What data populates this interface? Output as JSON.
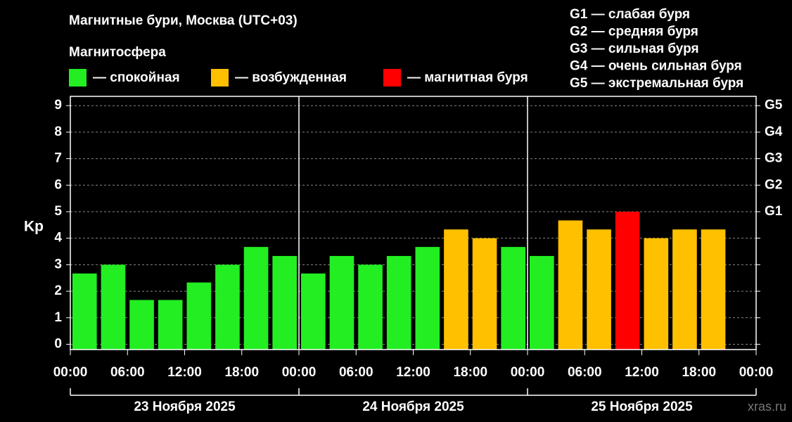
{
  "chart_data": {
    "type": "bar",
    "title": "Магнитные бури, Москва (UTC+03)",
    "legend_title": "Магнитосфера",
    "legend": [
      {
        "name": "— спокойная",
        "color": "#22ee22"
      },
      {
        "name": "— возбужденная",
        "color": "#ffc000"
      },
      {
        "name": "— магнитная буря",
        "color": "#ff0000"
      }
    ],
    "storm_levels": [
      "G1 — слабая буря",
      "G2 — средняя буря",
      "G3 — сильная буря",
      "G4 — очень сильная буря",
      "G5 — экстремальная буря"
    ],
    "ylabel": "Kp",
    "x": [
      0,
      3,
      6,
      9,
      12,
      15,
      18,
      21,
      24,
      27,
      30,
      33,
      36,
      39,
      42,
      45,
      48,
      51,
      54,
      57,
      60,
      63,
      66
    ],
    "values": [
      2.67,
      3,
      1.67,
      1.67,
      2.33,
      3,
      3.67,
      3.33,
      2.67,
      3.33,
      3,
      3.33,
      3.67,
      4.33,
      4,
      3.67,
      3.33,
      4.67,
      4.33,
      5,
      4,
      4.33,
      4.33
    ],
    "colors": [
      "#22ee22",
      "#22ee22",
      "#22ee22",
      "#22ee22",
      "#22ee22",
      "#22ee22",
      "#22ee22",
      "#22ee22",
      "#22ee22",
      "#22ee22",
      "#22ee22",
      "#22ee22",
      "#22ee22",
      "#ffc000",
      "#ffc000",
      "#22ee22",
      "#22ee22",
      "#ffc000",
      "#ffc000",
      "#ff0000",
      "#ffc000",
      "#ffc000",
      "#ffc000"
    ],
    "xlim": [
      0,
      72
    ],
    "xticks": [
      {
        "value": 0,
        "label": "00:00"
      },
      {
        "value": 6,
        "label": "06:00"
      },
      {
        "value": 12,
        "label": "12:00"
      },
      {
        "value": 18,
        "label": "18:00"
      },
      {
        "value": 24,
        "label": "00:00"
      },
      {
        "value": 30,
        "label": "06:00"
      },
      {
        "value": 36,
        "label": "12:00"
      },
      {
        "value": 42,
        "label": "18:00"
      },
      {
        "value": 48,
        "label": "00:00"
      },
      {
        "value": 54,
        "label": "06:00"
      },
      {
        "value": 60,
        "label": "12:00"
      },
      {
        "value": 66,
        "label": "18:00"
      },
      {
        "value": 72,
        "label": "00:00"
      }
    ],
    "days": [
      "23 Ноября 2025",
      "24 Ноября 2025",
      "25 Ноября 2025"
    ],
    "ylim": [
      -0.2,
      9.35
    ],
    "yticks": [
      0,
      1,
      2,
      3,
      4,
      5,
      6,
      7,
      8,
      9
    ],
    "y2ticks": [
      {
        "value": 5,
        "label": "G1"
      },
      {
        "value": 6,
        "label": "G2"
      },
      {
        "value": 7,
        "label": "G3"
      },
      {
        "value": 8,
        "label": "G4"
      },
      {
        "value": 9,
        "label": "G5"
      }
    ],
    "grid": true,
    "watermark": "xras.ru"
  }
}
